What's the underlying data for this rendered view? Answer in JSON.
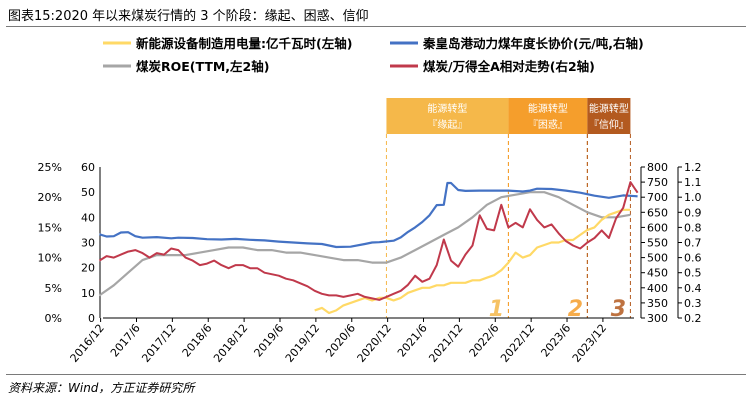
{
  "title": "图表15:2020 年以来煤炭行情的 3 个阶段：缘起、困惑、信仰",
  "source": "资料来源：Wind，方正证券研究所",
  "chart_data": {
    "type": "line",
    "x_ticks": [
      "2016/12",
      "2017/6",
      "2017/12",
      "2018/6",
      "2018/12",
      "2019/6",
      "2019/12",
      "2020/6",
      "2020/12",
      "2021/6",
      "2021/12",
      "2022/6",
      "2022/12",
      "2023/6",
      "2023/12"
    ],
    "x_range": [
      "2016/12",
      "2024/5"
    ],
    "axes": {
      "left_pct": {
        "ticks": [
          "0%",
          "5%",
          "10%",
          "15%",
          "20%",
          "25%"
        ],
        "range": [
          0,
          25
        ]
      },
      "left2": {
        "ticks": [
          "0",
          "10",
          "20",
          "30",
          "40",
          "50",
          "60"
        ],
        "range": [
          0,
          60
        ]
      },
      "right1": {
        "ticks": [
          "300",
          "350",
          "400",
          "450",
          "500",
          "550",
          "600",
          "650",
          "700",
          "750",
          "800"
        ],
        "range": [
          300,
          800
        ]
      },
      "right2": {
        "ticks": [
          "0.2",
          "0.3",
          "0.4",
          "0.5",
          "0.6",
          "0.7",
          "0.8",
          "0.9",
          "1.0",
          "1.1",
          "1.2"
        ],
        "range": [
          0.2,
          1.2
        ]
      }
    },
    "series": [
      {
        "name": "新能源设备制造用电量:亿千瓦时(左轴)",
        "color": "#ffd966",
        "axis": "left2",
        "x": [
          2019.9,
          2020.0,
          2020.1,
          2020.2,
          2020.3,
          2020.4,
          2020.5,
          2020.6,
          2020.7,
          2020.8,
          2020.9,
          2021.0,
          2021.1,
          2021.2,
          2021.3,
          2021.4,
          2021.5,
          2021.6,
          2021.7,
          2021.8,
          2021.9,
          2022.0,
          2022.1,
          2022.2,
          2022.3,
          2022.4,
          2022.5,
          2022.6,
          2022.7,
          2022.8,
          2022.9,
          2023.0,
          2023.1,
          2023.2,
          2023.3,
          2023.4,
          2023.5,
          2023.6,
          2023.7,
          2023.8,
          2023.9,
          2024.0,
          2024.1,
          2024.2,
          2024.3
        ],
        "y": [
          3,
          4,
          2,
          3,
          5,
          6,
          7,
          8,
          7,
          8,
          8,
          7,
          8,
          10,
          11,
          12,
          12,
          13,
          13,
          14,
          14,
          14,
          15,
          15,
          16,
          17,
          19,
          22,
          26,
          24,
          25,
          28,
          29,
          30,
          30,
          31,
          31,
          33,
          35,
          36,
          39,
          41,
          42,
          43,
          43
        ]
      },
      {
        "name": "秦皇岛港动力煤年度长协价(元/吨,右轴)",
        "color": "#4472c4",
        "axis": "right1",
        "x": [
          2016.9,
          2017.0,
          2017.1,
          2017.2,
          2017.3,
          2017.4,
          2017.5,
          2017.7,
          2017.9,
          2018.0,
          2018.2,
          2018.4,
          2018.6,
          2018.8,
          2019.0,
          2019.2,
          2019.4,
          2019.6,
          2019.8,
          2020.0,
          2020.2,
          2020.4,
          2020.6,
          2020.7,
          2020.8,
          2021.0,
          2021.1,
          2021.2,
          2021.3,
          2021.4,
          2021.5,
          2021.6,
          2021.7,
          2021.75,
          2021.8,
          2021.9,
          2022.0,
          2022.2,
          2022.4,
          2022.6,
          2022.8,
          2022.9,
          2023.0,
          2023.2,
          2023.4,
          2023.6,
          2023.8,
          2024.0,
          2024.2,
          2024.4
        ],
        "y": [
          577,
          570,
          571,
          583,
          584,
          571,
          566,
          568,
          564,
          566,
          565,
          561,
          560,
          562,
          559,
          557,
          553,
          550,
          547,
          545,
          535,
          536,
          545,
          550,
          551,
          556,
          567,
          585,
          600,
          618,
          640,
          674,
          675,
          747,
          747,
          724,
          721,
          722,
          722,
          722,
          719,
          722,
          728,
          727,
          722,
          715,
          705,
          698,
          706,
          703
        ]
      },
      {
        "name": "煤炭ROE(TTM,左2轴)",
        "color": "#a6a6a6",
        "axis": "left2",
        "x": [
          2016.9,
          2017.1,
          2017.3,
          2017.5,
          2017.7,
          2017.9,
          2018.1,
          2018.3,
          2018.5,
          2018.7,
          2018.9,
          2019.1,
          2019.3,
          2019.5,
          2019.7,
          2019.9,
          2020.1,
          2020.3,
          2020.5,
          2020.7,
          2020.9,
          2021.1,
          2021.3,
          2021.5,
          2021.7,
          2021.9,
          2022.1,
          2022.3,
          2022.5,
          2022.7,
          2022.9,
          2023.1,
          2023.3,
          2023.5,
          2023.7,
          2023.9,
          2024.1,
          2024.3
        ],
        "y": [
          9,
          13,
          18,
          23,
          25,
          25,
          25,
          26,
          27,
          28,
          28,
          27,
          27,
          26,
          26,
          25,
          24,
          23,
          23,
          22,
          22,
          24,
          27,
          30,
          33,
          36,
          40,
          45,
          48,
          49,
          50,
          50,
          48,
          45,
          42,
          40,
          40,
          41
        ]
      },
      {
        "name": "煤炭/万得全A相对走势(右2轴)",
        "color": "#c0394b",
        "axis": "right2",
        "x": [
          2016.9,
          2017.0,
          2017.1,
          2017.2,
          2017.3,
          2017.4,
          2017.5,
          2017.6,
          2017.7,
          2017.8,
          2017.9,
          2018.0,
          2018.1,
          2018.2,
          2018.3,
          2018.4,
          2018.5,
          2018.6,
          2018.7,
          2018.8,
          2018.9,
          2019.0,
          2019.1,
          2019.2,
          2019.3,
          2019.4,
          2019.5,
          2019.6,
          2019.7,
          2019.8,
          2019.9,
          2020.0,
          2020.1,
          2020.2,
          2020.3,
          2020.4,
          2020.5,
          2020.6,
          2020.7,
          2020.8,
          2020.9,
          2021.0,
          2021.1,
          2021.2,
          2021.3,
          2021.4,
          2021.5,
          2021.6,
          2021.7,
          2021.8,
          2021.9,
          2022.0,
          2022.1,
          2022.2,
          2022.3,
          2022.4,
          2022.5,
          2022.6,
          2022.7,
          2022.8,
          2022.9,
          2023.0,
          2023.1,
          2023.2,
          2023.3,
          2023.4,
          2023.5,
          2023.6,
          2023.7,
          2023.8,
          2023.9,
          2024.0,
          2024.1,
          2024.2,
          2024.3,
          2024.4
        ],
        "y": [
          0.58,
          0.61,
          0.6,
          0.62,
          0.64,
          0.65,
          0.63,
          0.6,
          0.63,
          0.62,
          0.66,
          0.65,
          0.6,
          0.58,
          0.55,
          0.56,
          0.58,
          0.55,
          0.53,
          0.55,
          0.55,
          0.53,
          0.53,
          0.5,
          0.49,
          0.48,
          0.46,
          0.45,
          0.43,
          0.41,
          0.38,
          0.36,
          0.35,
          0.35,
          0.34,
          0.35,
          0.36,
          0.34,
          0.33,
          0.32,
          0.34,
          0.36,
          0.38,
          0.42,
          0.48,
          0.44,
          0.46,
          0.55,
          0.72,
          0.58,
          0.54,
          0.62,
          0.68,
          0.88,
          0.79,
          0.78,
          0.95,
          0.8,
          0.83,
          0.8,
          0.92,
          0.85,
          0.8,
          0.82,
          0.76,
          0.71,
          0.68,
          0.66,
          0.7,
          0.73,
          0.78,
          0.73,
          0.86,
          0.93,
          1.1,
          1.03
        ]
      }
    ],
    "phases": [
      {
        "label": "能源转型",
        "sub": "『缘起』",
        "number": "1",
        "color": "#f5b84a",
        "start": 2020.9,
        "end": 2022.6
      },
      {
        "label": "能源转型",
        "sub": "『困惑』",
        "number": "2",
        "color": "#f59e2c",
        "start": 2022.6,
        "end": 2023.7
      },
      {
        "label": "能源转型",
        "sub": "『信仰』",
        "number": "3",
        "color": "#b35a1f",
        "start": 2023.7,
        "end": 2024.3
      }
    ],
    "legend_placement": "top",
    "grid": false
  }
}
